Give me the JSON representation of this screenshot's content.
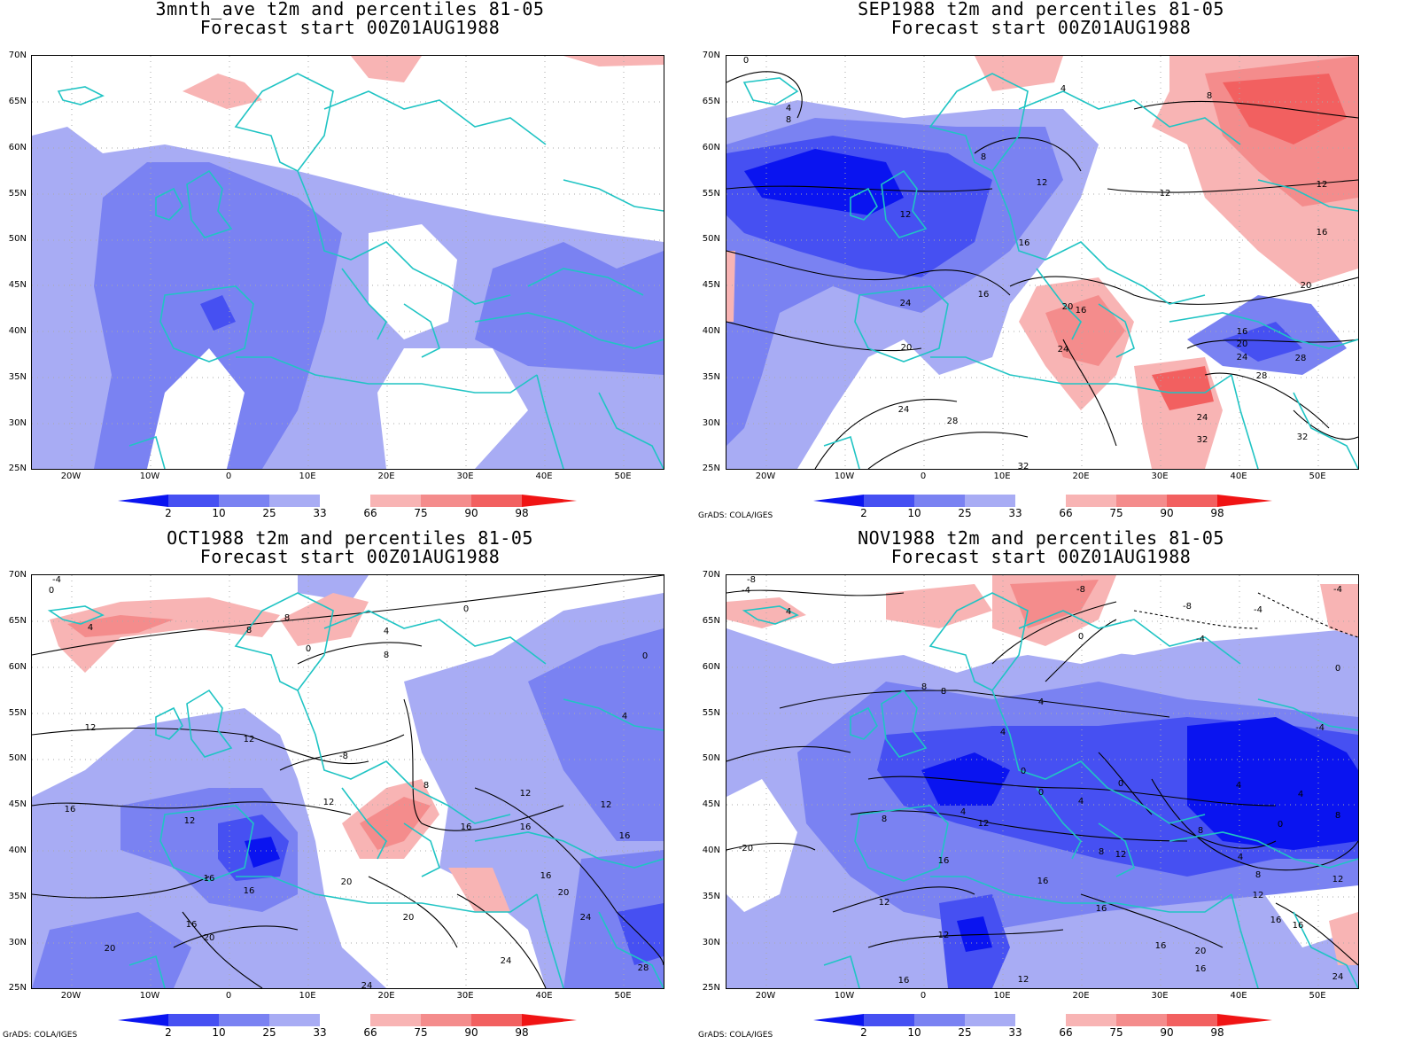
{
  "colors": {
    "b2": "#0a14f0",
    "b10": "#4650f2",
    "b25": "#7a82f2",
    "b33": "#a8acf4",
    "r66": "#f8b4b4",
    "r75": "#f48c8c",
    "r90": "#f26060",
    "r98": "#f01414",
    "coast": "#20c4c4",
    "contour": "#000000",
    "grid": "#aaaaaa"
  },
  "lat_labels": [
    "70N",
    "65N",
    "60N",
    "55N",
    "50N",
    "45N",
    "40N",
    "35N",
    "30N",
    "25N"
  ],
  "lon_labels": [
    "20W",
    "10W",
    "0",
    "10E",
    "20E",
    "30E",
    "40E",
    "50E"
  ],
  "colorbar_labels": [
    "2",
    "10",
    "25",
    "33",
    "66",
    "75",
    "90",
    "98"
  ],
  "credit": "GrADS: COLA/IGES",
  "panels": [
    {
      "title_line1": "3mnth_ave t2m and percentiles 81-05",
      "title_line2": "Forecast start 00Z01AUG1988",
      "contour_labels": []
    },
    {
      "title_line1": "SEP1988 t2m and percentiles 81-05",
      "title_line2": "Forecast start 00Z01AUG1988",
      "contour_labels": [
        "0",
        "4",
        "8",
        "4",
        "8",
        "12",
        "12",
        "12",
        "12",
        "16",
        "16",
        "16",
        "20",
        "20",
        "20",
        "24",
        "24",
        "28",
        "28",
        "24",
        "16",
        "16",
        "20",
        "24",
        "28",
        "32",
        "32",
        "24",
        "8"
      ]
    },
    {
      "title_line1": "OCT1988 t2m and percentiles 81-05",
      "title_line2": "Forecast start 00Z01AUG1988",
      "contour_labels": [
        "-4",
        "0",
        "4",
        "8",
        "8",
        "0",
        "4",
        "8",
        "0",
        "12",
        "12",
        "-8",
        "8",
        "12",
        "16",
        "16",
        "16",
        "12",
        "12",
        "16",
        "12",
        "16",
        "20",
        "20",
        "16",
        "16",
        "20",
        "20",
        "24",
        "24",
        "28",
        "4",
        "0",
        "16",
        "20",
        "24"
      ]
    },
    {
      "title_line1": "NOV1988 t2m and percentiles 81-05",
      "title_line2": "Forecast start 00Z01AUG1988",
      "contour_labels": [
        "-8",
        "-4",
        "4",
        "-8",
        "0",
        "-4",
        "-4",
        "-8",
        "-4",
        "0",
        "8",
        "8",
        "4",
        "4",
        "4",
        "-4",
        "0",
        "0",
        "0",
        "4",
        "4",
        "8",
        "12",
        "8",
        "12",
        "16",
        "16",
        "12",
        "16",
        "16",
        "20",
        "16",
        "16",
        "12",
        "12",
        "4",
        "8",
        "0",
        "8",
        "4",
        "8",
        "12",
        "16",
        "16",
        "24",
        "-20"
      ]
    }
  ]
}
